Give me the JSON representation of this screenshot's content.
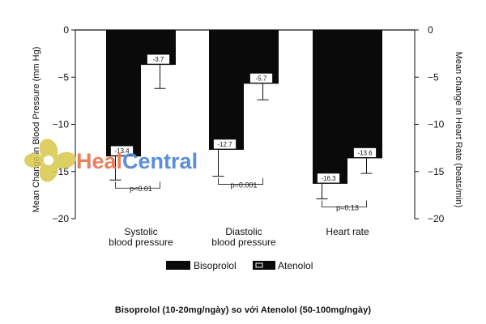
{
  "chart_data": {
    "type": "bar",
    "categories": [
      [
        "Systolic",
        "blood pressure"
      ],
      [
        "Diastolic",
        "blood pressure"
      ],
      [
        "Heart rate"
      ]
    ],
    "series": [
      {
        "name": "Bisoprolol",
        "values": [
          -13.4,
          -12.7,
          -16.3
        ],
        "labels": [
          "-13.4",
          "-12.7",
          "-16.3"
        ],
        "error": [
          2.5,
          2.8,
          1.6
        ]
      },
      {
        "name": "Atenolol",
        "values": [
          -3.7,
          -5.7,
          -13.6
        ],
        "labels": [
          "-3.7",
          "-5.7",
          "-13.6"
        ],
        "error": [
          2.5,
          1.7,
          1.6
        ]
      }
    ],
    "pvalues": [
      "p<0.01",
      "p=0.001",
      "p=0.13"
    ],
    "ylabel_left": "Mean Change in Blood Pressure (mm Hg)",
    "ylabel_right": "Mean change in Heart Rate (beats/min)",
    "ylim": [
      -20,
      0
    ],
    "yticks": [
      0,
      -5,
      -10,
      -15,
      -20
    ],
    "ytick_labels": [
      "0",
      "−5",
      "−10",
      "−15",
      "−20"
    ],
    "legend_position": "bottom-center",
    "colors": {
      "Bisoprolol": "#0a0a0a",
      "Atenolol": "#0a0a0a",
      "axis": "#111111"
    }
  },
  "caption": "Bisoprolol (10-20mg/ngày) so với Atenolol (50-100mg/ngày)",
  "watermark": {
    "text_part1": "Heal",
    "text_part2": "Central",
    "color1": "#e8805f",
    "color2": "#5b8ed8",
    "logo_color": "#d6c74a",
    "logo_icon": "four-leaf-clover-logo"
  }
}
